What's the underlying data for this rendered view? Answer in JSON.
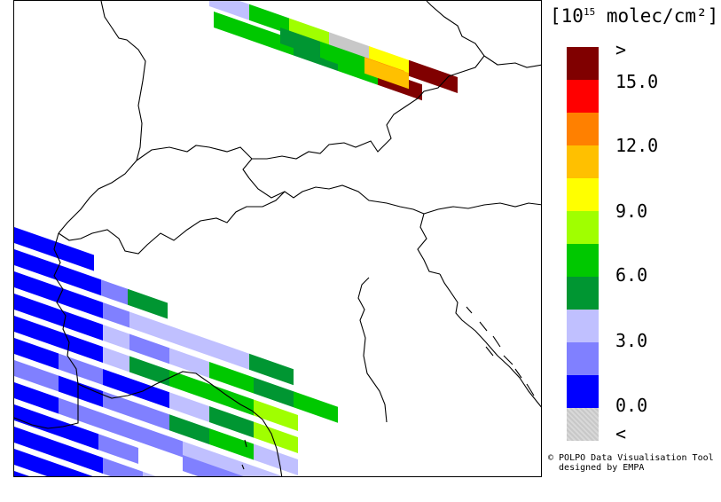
{
  "legend": {
    "unit_base": "10",
    "unit_exp": "15",
    "unit_rest": " molec/cm²",
    "ticks": [
      ">",
      "15.0",
      "12.0",
      "9.0",
      "6.0",
      "3.0",
      "0.0",
      "<"
    ],
    "bins": [
      {
        "color": "#800000"
      },
      {
        "color": "#ff0000"
      },
      {
        "color": "#ff8000"
      },
      {
        "color": "#ffc000"
      },
      {
        "color": "#ffff00"
      },
      {
        "color": "#a0ff00"
      },
      {
        "color": "#00c800"
      },
      {
        "color": "#009632"
      },
      {
        "color": "#c0c0ff"
      },
      {
        "color": "#8080ff"
      },
      {
        "color": "#0000ff"
      },
      {
        "color": "#c8c8c8"
      }
    ]
  },
  "credit": {
    "line1": "© POLPO Data Visualisation Tool",
    "line2": "  designed by EMPA"
  },
  "palette": {
    "above": "#800000",
    "c15": "#ff0000",
    "c12": "#ff8000",
    "c10": "#ffc000",
    "c9": "#ffff00",
    "c7": "#a0ff00",
    "c6": "#00c800",
    "c4": "#009632",
    "c3": "#c0c0ff",
    "c1": "#8080ff",
    "c0": "#0000ff",
    "below": "#c8c8c8"
  }
}
